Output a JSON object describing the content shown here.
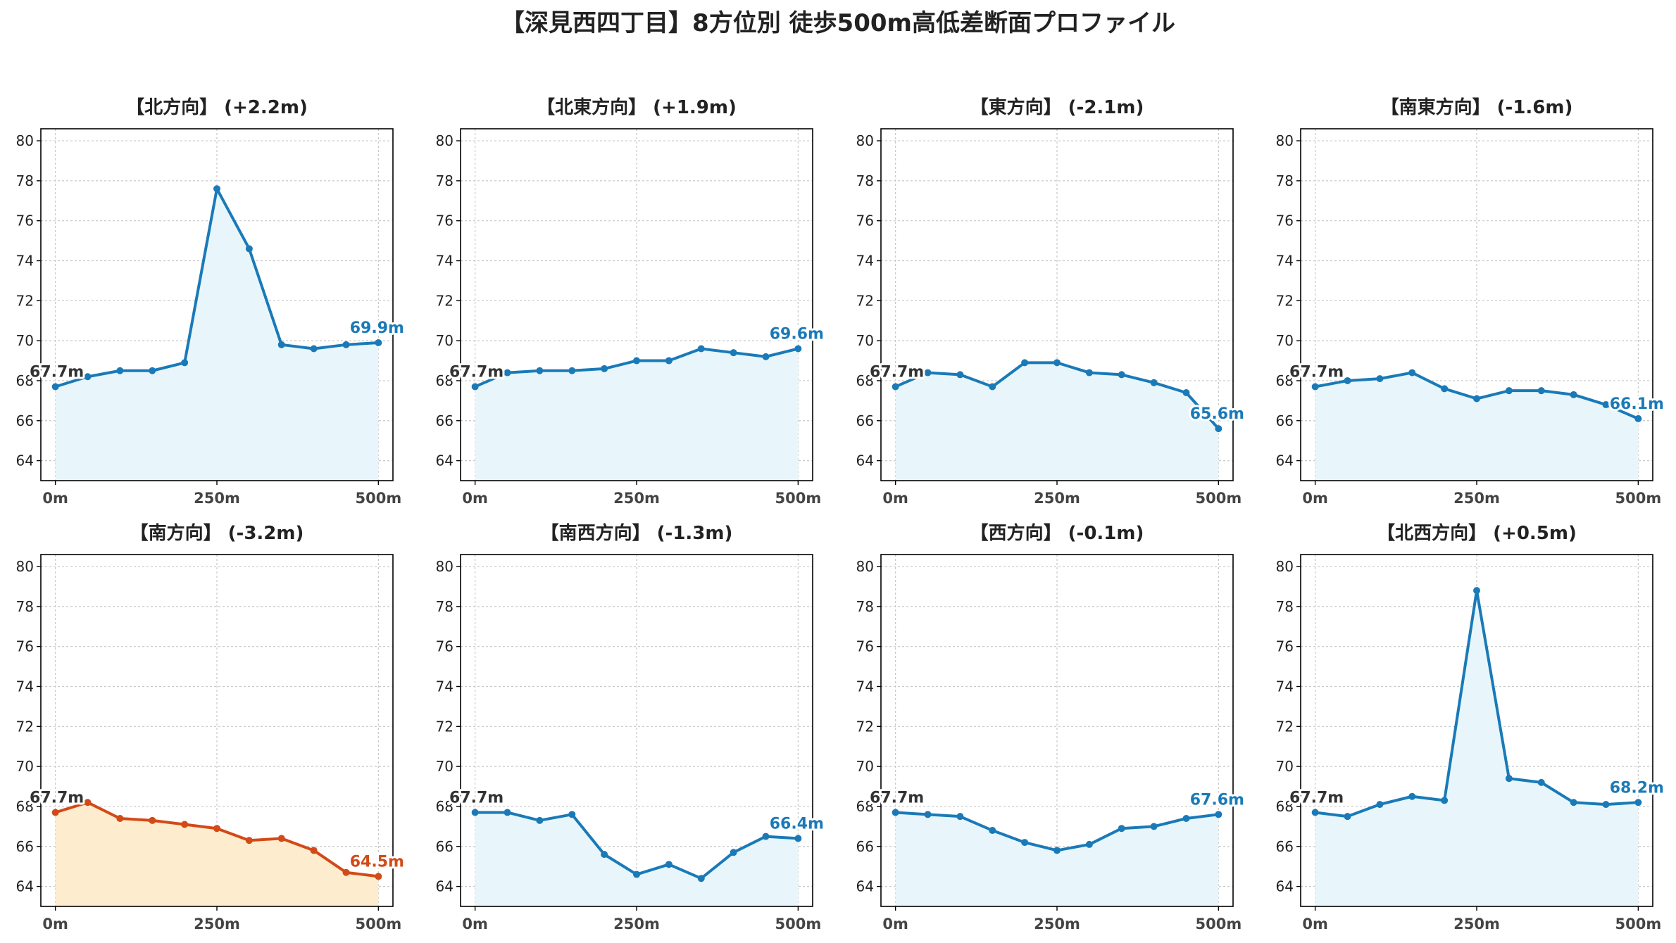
{
  "title": "【深見西四丁目】8方位別 徒歩500m高低差断面プロファイル",
  "colors": {
    "up_line": "#1a7ab8",
    "up_fill": "#e8f6fb",
    "down_line": "#d24a18",
    "down_fill": "#fdeccd",
    "start_label": "#333333"
  },
  "chart_data": [
    {
      "type": "area",
      "title": "【北方向】 (+2.2m)",
      "x": [
        0,
        50,
        100,
        150,
        200,
        250,
        300,
        350,
        400,
        450,
        500
      ],
      "y": [
        67.7,
        68.2,
        68.5,
        68.5,
        68.9,
        77.6,
        74.6,
        69.8,
        69.6,
        69.8,
        69.9
      ],
      "xticks": [
        "0m",
        "250m",
        "500m"
      ],
      "ylim": [
        63,
        80.6
      ],
      "yticks": [
        64,
        66,
        68,
        70,
        72,
        74,
        76,
        78,
        80
      ],
      "start_label": "67.7m",
      "end_label": "69.9m",
      "grid": true
    },
    {
      "type": "area",
      "title": "【北東方向】 (+1.9m)",
      "x": [
        0,
        50,
        100,
        150,
        200,
        250,
        300,
        350,
        400,
        450,
        500
      ],
      "y": [
        67.7,
        68.4,
        68.5,
        68.5,
        68.6,
        69.0,
        69.0,
        69.6,
        69.4,
        69.2,
        69.6
      ],
      "xticks": [
        "0m",
        "250m",
        "500m"
      ],
      "ylim": [
        63,
        80.6
      ],
      "yticks": [
        64,
        66,
        68,
        70,
        72,
        74,
        76,
        78,
        80
      ],
      "start_label": "67.7m",
      "end_label": "69.6m",
      "grid": true
    },
    {
      "type": "area",
      "title": "【東方向】 (-2.1m)",
      "x": [
        0,
        50,
        100,
        150,
        200,
        250,
        300,
        350,
        400,
        450,
        500
      ],
      "y": [
        67.7,
        68.4,
        68.3,
        67.7,
        68.9,
        68.9,
        68.4,
        68.3,
        67.9,
        67.4,
        65.6
      ],
      "xticks": [
        "0m",
        "250m",
        "500m"
      ],
      "ylim": [
        63,
        80.6
      ],
      "yticks": [
        64,
        66,
        68,
        70,
        72,
        74,
        76,
        78,
        80
      ],
      "start_label": "67.7m",
      "end_label": "65.6m",
      "grid": true
    },
    {
      "type": "area",
      "title": "【南東方向】 (-1.6m)",
      "x": [
        0,
        50,
        100,
        150,
        200,
        250,
        300,
        350,
        400,
        450,
        500
      ],
      "y": [
        67.7,
        68.0,
        68.1,
        68.4,
        67.6,
        67.1,
        67.5,
        67.5,
        67.3,
        66.8,
        66.1
      ],
      "xticks": [
        "0m",
        "250m",
        "500m"
      ],
      "ylim": [
        63,
        80.6
      ],
      "yticks": [
        64,
        66,
        68,
        70,
        72,
        74,
        76,
        78,
        80
      ],
      "start_label": "67.7m",
      "end_label": "66.1m",
      "grid": true
    },
    {
      "type": "area",
      "title": "【南方向】 (-3.2m)",
      "x": [
        0,
        50,
        100,
        150,
        200,
        250,
        300,
        350,
        400,
        450,
        500
      ],
      "y": [
        67.7,
        68.2,
        67.4,
        67.3,
        67.1,
        66.9,
        66.3,
        66.4,
        65.8,
        64.7,
        64.5
      ],
      "xticks": [
        "0m",
        "250m",
        "500m"
      ],
      "ylim": [
        63,
        80.6
      ],
      "yticks": [
        64,
        66,
        68,
        70,
        72,
        74,
        76,
        78,
        80
      ],
      "start_label": "67.7m",
      "end_label": "64.5m",
      "grid": true
    },
    {
      "type": "area",
      "title": "【南西方向】 (-1.3m)",
      "x": [
        0,
        50,
        100,
        150,
        200,
        250,
        300,
        350,
        400,
        450,
        500
      ],
      "y": [
        67.7,
        67.7,
        67.3,
        67.6,
        65.6,
        64.6,
        65.1,
        64.4,
        65.7,
        66.5,
        66.4
      ],
      "xticks": [
        "0m",
        "250m",
        "500m"
      ],
      "ylim": [
        63,
        80.6
      ],
      "yticks": [
        64,
        66,
        68,
        70,
        72,
        74,
        76,
        78,
        80
      ],
      "start_label": "67.7m",
      "end_label": "66.4m",
      "grid": true
    },
    {
      "type": "area",
      "title": "【西方向】 (-0.1m)",
      "x": [
        0,
        50,
        100,
        150,
        200,
        250,
        300,
        350,
        400,
        450,
        500
      ],
      "y": [
        67.7,
        67.6,
        67.5,
        66.8,
        66.2,
        65.8,
        66.1,
        66.9,
        67.0,
        67.4,
        67.6
      ],
      "xticks": [
        "0m",
        "250m",
        "500m"
      ],
      "ylim": [
        63,
        80.6
      ],
      "yticks": [
        64,
        66,
        68,
        70,
        72,
        74,
        76,
        78,
        80
      ],
      "start_label": "67.7m",
      "end_label": "67.6m",
      "grid": true
    },
    {
      "type": "area",
      "title": "【北西方向】 (+0.5m)",
      "x": [
        0,
        50,
        100,
        150,
        200,
        250,
        300,
        350,
        400,
        450,
        500
      ],
      "y": [
        67.7,
        67.5,
        68.1,
        68.5,
        68.3,
        78.8,
        69.4,
        69.2,
        68.2,
        68.1,
        68.2
      ],
      "xticks": [
        "0m",
        "250m",
        "500m"
      ],
      "ylim": [
        63,
        80.6
      ],
      "yticks": [
        64,
        66,
        68,
        70,
        72,
        74,
        76,
        78,
        80
      ],
      "start_label": "67.7m",
      "end_label": "68.2m",
      "grid": true
    }
  ]
}
